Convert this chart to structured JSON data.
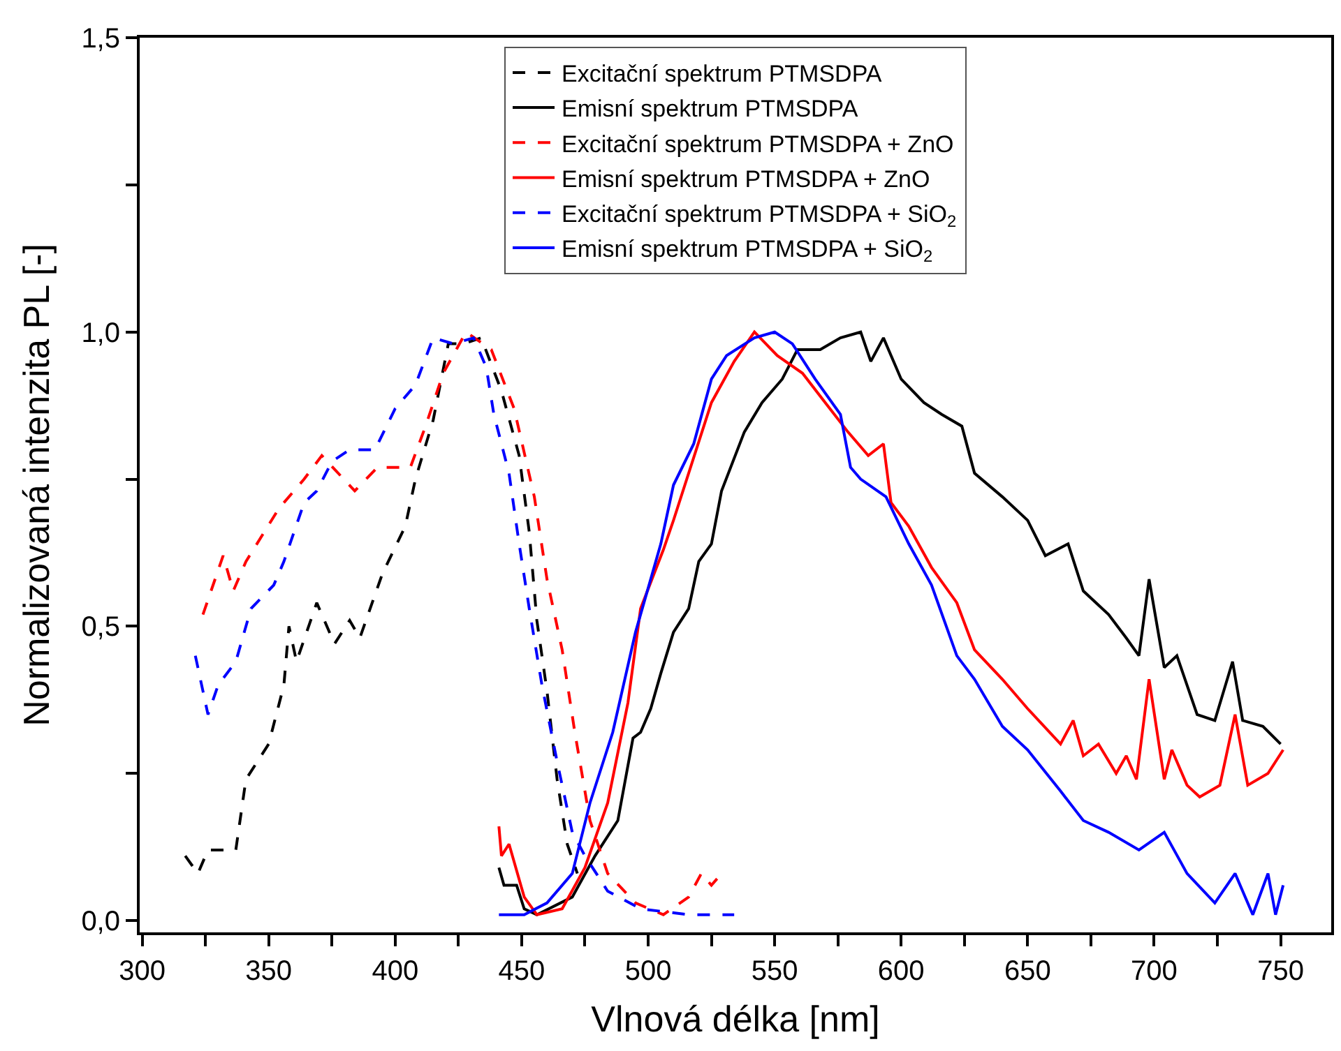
{
  "chart_data": {
    "type": "line",
    "xlabel": "Vlnová délka [nm]",
    "ylabel": "Normalizovaná intenzita PL [-]",
    "xlim": [
      299,
      770
    ],
    "ylim": [
      -0.02,
      1.5
    ],
    "xticks": [
      300,
      {
        "value": 325,
        "label": null
      },
      350,
      {
        "value": 375,
        "label": null
      },
      400,
      {
        "value": 425,
        "label": null
      },
      450,
      {
        "value": 475,
        "label": null
      },
      500,
      {
        "value": 525,
        "label": null
      },
      550,
      {
        "value": 575,
        "label": null
      },
      600,
      {
        "value": 625,
        "label": null
      },
      650,
      {
        "value": 675,
        "label": null
      },
      700,
      {
        "value": 725,
        "label": null
      },
      750
    ],
    "yticks": [
      {
        "value": 0,
        "label": "0,0"
      },
      {
        "value": 0.25,
        "label": null
      },
      {
        "value": 0.5,
        "label": "0,5"
      },
      {
        "value": 0.75,
        "label": null
      },
      {
        "value": 1.0,
        "label": "1,0"
      },
      {
        "value": 1.25,
        "label": null
      },
      {
        "value": 1.5,
        "label": "1,5"
      }
    ],
    "legend": "top",
    "marker": "none",
    "series": [
      {
        "name": "Excitační spektrum PTMSDPA",
        "color": "#000000",
        "line_style": "dashed",
        "x": [
          317,
          322,
          326,
          337,
          341,
          350,
          356,
          358,
          361,
          369,
          376,
          382,
          386,
          395,
          404,
          408,
          415,
          421,
          427,
          434,
          442,
          449,
          453,
          456,
          460,
          464,
          468,
          472
        ],
        "values": [
          0.11,
          0.08,
          0.12,
          0.12,
          0.24,
          0.3,
          0.4,
          0.5,
          0.44,
          0.54,
          0.47,
          0.51,
          0.48,
          0.59,
          0.67,
          0.75,
          0.85,
          0.98,
          0.98,
          0.99,
          0.9,
          0.79,
          0.66,
          0.51,
          0.39,
          0.24,
          0.13,
          0.08
        ]
      },
      {
        "name": "Emisní spektrum PTMSDPA",
        "color": "#000000",
        "line_style": "solid",
        "x": [
          441,
          443,
          448,
          451,
          456,
          470,
          479,
          488,
          494,
          497,
          501,
          505,
          510,
          516,
          520,
          525,
          529,
          538,
          545,
          553,
          559,
          568,
          576,
          584,
          588,
          593,
          600,
          609,
          616,
          624,
          629,
          640,
          650,
          657,
          666,
          672,
          682,
          689,
          694,
          698,
          704,
          709,
          717,
          724,
          731,
          735,
          743,
          750
        ],
        "values": [
          0.09,
          0.06,
          0.06,
          0.02,
          0.01,
          0.04,
          0.11,
          0.17,
          0.31,
          0.32,
          0.36,
          0.42,
          0.49,
          0.53,
          0.61,
          0.64,
          0.73,
          0.83,
          0.88,
          0.92,
          0.97,
          0.97,
          0.99,
          1.0,
          0.95,
          0.99,
          0.92,
          0.88,
          0.86,
          0.84,
          0.76,
          0.72,
          0.68,
          0.62,
          0.64,
          0.56,
          0.52,
          0.48,
          0.45,
          0.58,
          0.43,
          0.45,
          0.35,
          0.34,
          0.44,
          0.34,
          0.33,
          0.3
        ]
      },
      {
        "name": "Excitační spektrum PTMSDPA + ZnO",
        "color": "#ff0000",
        "line_style": "dashed",
        "x": [
          324,
          332,
          336,
          341,
          354,
          364,
          371,
          384,
          393,
          406,
          412,
          419,
          428,
          438,
          447,
          455,
          460,
          466,
          471,
          477,
          484,
          495,
          506,
          516,
          521,
          525,
          529
        ],
        "values": [
          0.52,
          0.62,
          0.56,
          0.61,
          0.7,
          0.75,
          0.79,
          0.73,
          0.77,
          0.77,
          0.84,
          0.93,
          1.0,
          0.97,
          0.87,
          0.72,
          0.58,
          0.46,
          0.32,
          0.17,
          0.08,
          0.03,
          0.01,
          0.04,
          0.08,
          0.06,
          0.08
        ]
      },
      {
        "name": "Emisní spektrum PTMSDPA + ZnO",
        "color": "#ff0000",
        "line_style": "solid",
        "x": [
          441,
          442,
          445,
          451,
          456,
          466,
          475,
          484,
          492,
          497,
          506,
          510,
          525,
          534,
          542,
          551,
          561,
          570,
          579,
          587,
          593,
          596,
          603,
          612,
          622,
          629,
          640,
          650,
          663,
          668,
          672,
          678,
          685,
          689,
          693,
          698,
          704,
          707,
          713,
          718,
          726,
          732,
          737,
          745,
          751
        ],
        "values": [
          0.16,
          0.11,
          0.13,
          0.04,
          0.01,
          0.02,
          0.09,
          0.2,
          0.37,
          0.53,
          0.63,
          0.68,
          0.88,
          0.95,
          1.0,
          0.96,
          0.93,
          0.88,
          0.83,
          0.79,
          0.81,
          0.71,
          0.67,
          0.6,
          0.54,
          0.46,
          0.41,
          0.36,
          0.3,
          0.34,
          0.28,
          0.3,
          0.25,
          0.28,
          0.24,
          0.41,
          0.24,
          0.29,
          0.23,
          0.21,
          0.23,
          0.35,
          0.23,
          0.25,
          0.29
        ]
      },
      {
        "name": "Excitační spektrum PTMSDPA + SiO$_{2}$",
        "color": "#0000ff",
        "line_style": "dashed",
        "x": [
          321,
          326,
          330,
          337,
          343,
          352,
          356,
          364,
          369,
          375,
          382,
          392,
          400,
          408,
          415,
          423,
          431,
          436,
          439,
          445,
          449,
          453,
          458,
          464,
          470,
          475,
          484,
          497,
          516,
          534
        ],
        "values": [
          0.45,
          0.35,
          0.4,
          0.44,
          0.53,
          0.57,
          0.61,
          0.71,
          0.73,
          0.78,
          0.8,
          0.8,
          0.87,
          0.91,
          0.99,
          0.98,
          0.99,
          0.94,
          0.86,
          0.76,
          0.64,
          0.53,
          0.4,
          0.27,
          0.15,
          0.11,
          0.05,
          0.02,
          0.01,
          0.01
        ]
      },
      {
        "name": "Emisní spektrum PTMSDPA + SiO$_{2}$",
        "color": "#0000ff",
        "line_style": "solid",
        "x": [
          441,
          451,
          460,
          470,
          477,
          486,
          495,
          505,
          510,
          518,
          525,
          531,
          542,
          550,
          557,
          566,
          576,
          580,
          584,
          594,
          603,
          612,
          622,
          629,
          640,
          650,
          663,
          672,
          682,
          694,
          704,
          713,
          724,
          732,
          739,
          745,
          748,
          751
        ],
        "values": [
          0.01,
          0.01,
          0.03,
          0.08,
          0.2,
          0.32,
          0.49,
          0.64,
          0.74,
          0.81,
          0.92,
          0.96,
          0.99,
          1.0,
          0.98,
          0.92,
          0.86,
          0.77,
          0.75,
          0.72,
          0.64,
          0.57,
          0.45,
          0.41,
          0.33,
          0.29,
          0.22,
          0.17,
          0.15,
          0.12,
          0.15,
          0.08,
          0.03,
          0.08,
          0.01,
          0.08,
          0.01,
          0.06
        ]
      }
    ]
  }
}
